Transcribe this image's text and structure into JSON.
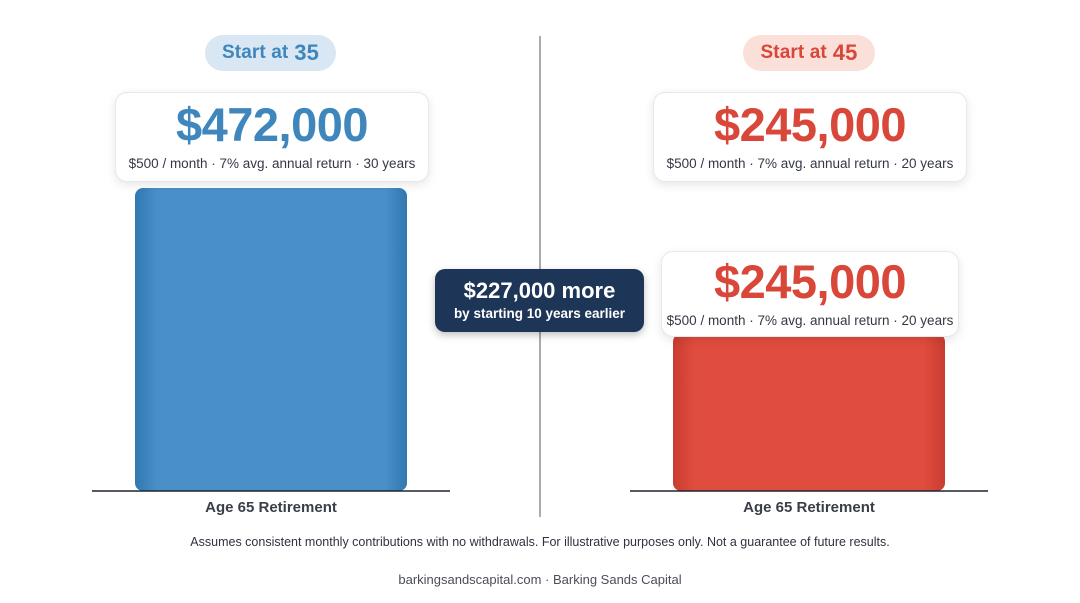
{
  "left": {
    "pill_prefix": "Start at",
    "pill_number": "35",
    "amount": "$472,000",
    "detail": "$500 / month · 7% avg. annual return · 30 years",
    "baseline_label": "Age 65 Retirement"
  },
  "right": {
    "pill_prefix": "Start at",
    "pill_number": "45",
    "amount": "$245,000",
    "detail": "$500 / month · 7% avg. annual return · 20 years",
    "amount_near_bar": "$245,000",
    "detail_near_bar": "$500 / month · 7% avg. annual return · 20 years",
    "baseline_label": "Age 65 Retirement"
  },
  "difference": {
    "headline": "$227,000 more",
    "subline": "by starting 10 years earlier"
  },
  "disclaimer": "Assumes consistent monthly contributions with no withdrawals. For illustrative purposes only. Not a guarantee of future results.",
  "footer": "barkingsandscapital.com · Barking Sands Capital",
  "colors": {
    "blue": "#3f86bd",
    "red": "#d8473a",
    "navy": "#1d3557",
    "divider": "#8a8f99"
  },
  "chart_data": {
    "type": "bar",
    "categories": [
      "Start at 35",
      "Start at 45"
    ],
    "values": [
      472000,
      245000
    ],
    "colors": [
      "#3f86bd",
      "#d8473a"
    ],
    "ylim": [
      0,
      472000
    ],
    "grid": false,
    "legend": "none"
  }
}
